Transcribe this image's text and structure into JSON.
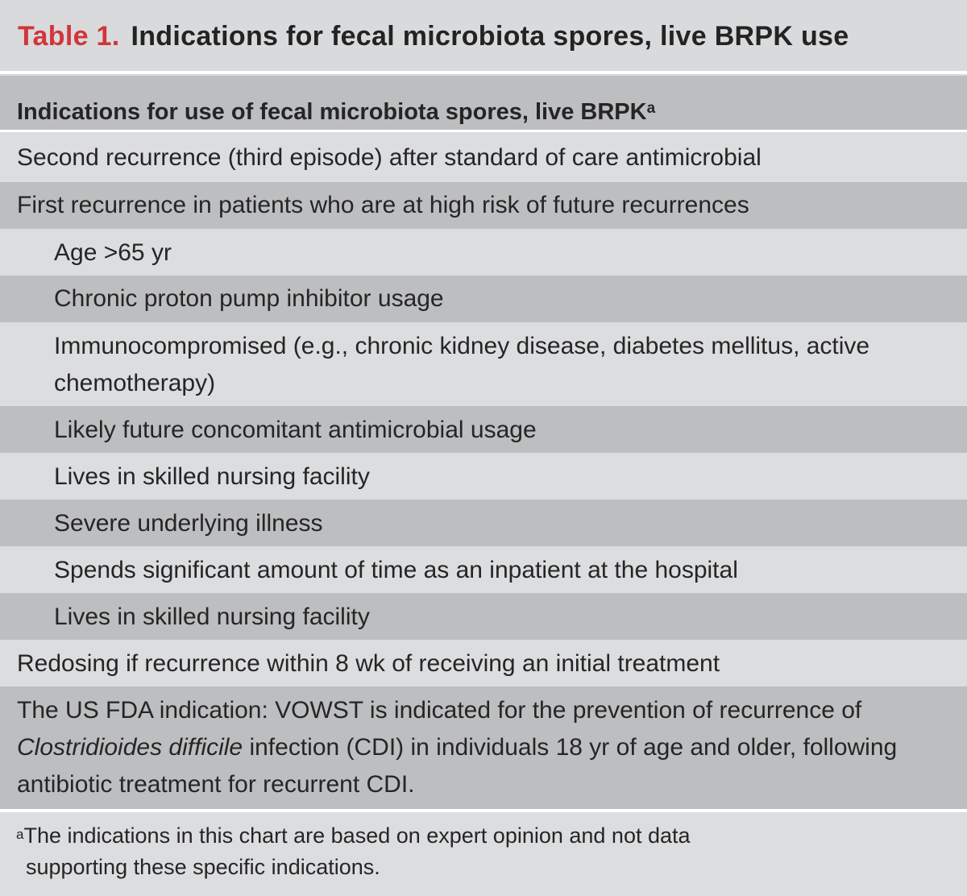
{
  "table": {
    "label": "Table 1.",
    "title": "Indications for fecal microbiota spores, live BRPK use",
    "header": {
      "text": "Indications for use of fecal microbiota spores, live BRPK",
      "sup": "a"
    },
    "rows": [
      "Second recurrence (third episode) after standard of care antimicrobial",
      "First recurrence in patients who are at high risk of future recurrences",
      "Age >65 yr",
      "Chronic proton pump inhibitor usage",
      "Immunocompromised (e.g., chronic kidney disease, diabetes mellitus, active chemotherapy)",
      "Likely future concomitant antimicrobial usage",
      "Lives in skilled nursing facility",
      "Severe underlying illness",
      "Spends significant amount of time as an inpatient at the hospital",
      "Lives in skilled nursing facility",
      "Redosing if recurrence within 8 wk of receiving an initial treatment"
    ],
    "fda": {
      "before": "The US FDA indication: VOWST is indicated for the prevention of recurrence of ",
      "organism": "Clostridioides difficile",
      "after": " infection (CDI) in individuals 18 yr of age and older, following antibiotic treatment for recurrent CDI."
    },
    "footnote": {
      "sup": "a",
      "line1": "The indications in this chart are based on expert opinion and not data",
      "line2": "supporting these specific indications."
    }
  }
}
